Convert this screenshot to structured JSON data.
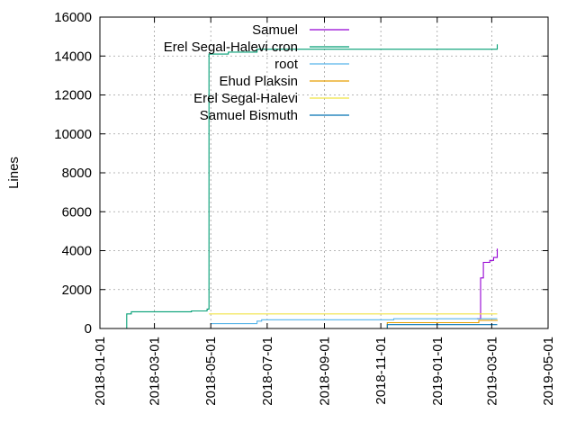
{
  "chart_data": {
    "type": "line",
    "title": "",
    "xlabel": "",
    "ylabel": "Lines",
    "ylim": [
      0,
      16000
    ],
    "xlim": [
      "2018-01-01",
      "2019-05-01"
    ],
    "grid": true,
    "legend_position": "top-right (inside)",
    "yticks": [
      "0",
      "2000",
      "4000",
      "6000",
      "8000",
      "10000",
      "12000",
      "14000",
      "16000"
    ],
    "xticks": [
      "2018-01-01",
      "2018-03-01",
      "2018-05-01",
      "2018-07-01",
      "2018-09-01",
      "2018-11-01",
      "2019-01-01",
      "2019-03-01",
      "2019-05-01"
    ],
    "series": [
      {
        "name": "Samuel",
        "color": "#9400d3",
        "points": [
          [
            "2019-02-13",
            500
          ],
          [
            "2019-02-17",
            2600
          ],
          [
            "2019-02-20",
            3400
          ],
          [
            "2019-02-27",
            3500
          ],
          [
            "2019-03-03",
            3650
          ],
          [
            "2019-03-07",
            4100
          ]
        ]
      },
      {
        "name": "Erel Segal-Halevi cron",
        "color": "#009e73",
        "points": [
          [
            "2018-01-29",
            0
          ],
          [
            "2018-01-30",
            750
          ],
          [
            "2018-02-02",
            750
          ],
          [
            "2018-02-04",
            860
          ],
          [
            "2018-04-10",
            900
          ],
          [
            "2018-04-27",
            1000
          ],
          [
            "2018-04-29",
            14100
          ],
          [
            "2018-05-20",
            14200
          ],
          [
            "2018-06-20",
            14350
          ],
          [
            "2019-03-05",
            14350
          ],
          [
            "2019-03-07",
            14600
          ]
        ]
      },
      {
        "name": "root",
        "color": "#56b4e9",
        "points": [
          [
            "2018-05-01",
            250
          ],
          [
            "2018-06-20",
            380
          ],
          [
            "2018-06-25",
            450
          ],
          [
            "2018-11-10",
            450
          ],
          [
            "2018-11-15",
            500
          ],
          [
            "2019-03-07",
            500
          ]
        ]
      },
      {
        "name": "Ehud Plaksin",
        "color": "#e69f00",
        "points": [
          [
            "2018-11-05",
            0
          ],
          [
            "2018-11-08",
            300
          ],
          [
            "2019-02-15",
            420
          ],
          [
            "2019-03-07",
            440
          ]
        ]
      },
      {
        "name": "Erel Segal-Halevi",
        "color": "#f0e442",
        "points": [
          [
            "2018-04-29",
            750
          ],
          [
            "2019-03-07",
            750
          ]
        ]
      },
      {
        "name": "Samuel Bismuth",
        "color": "#0072b2",
        "points": [
          [
            "2018-11-05",
            0
          ],
          [
            "2018-11-08",
            200
          ],
          [
            "2019-03-07",
            200
          ]
        ]
      }
    ]
  }
}
